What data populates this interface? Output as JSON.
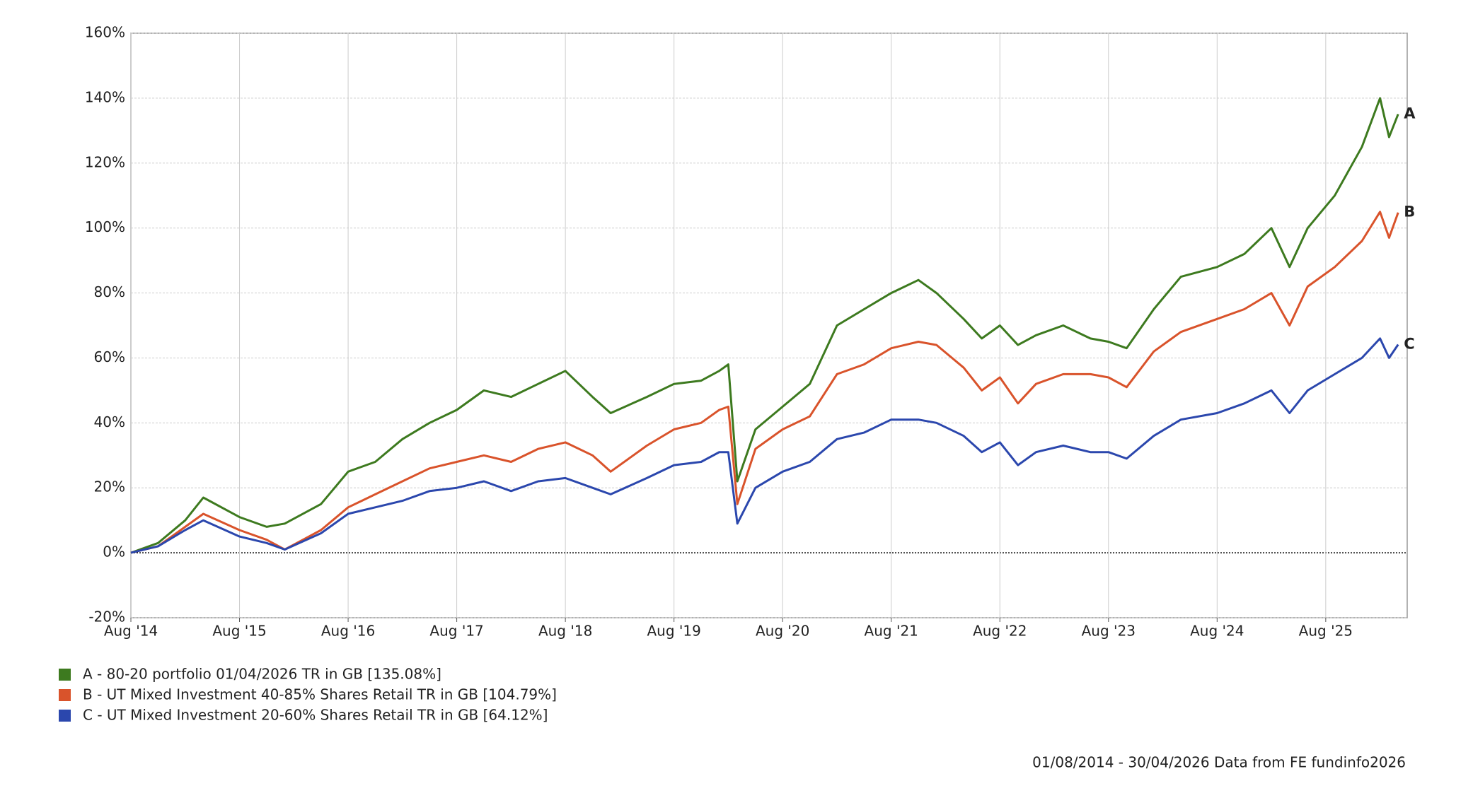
{
  "chart_data": {
    "type": "line",
    "x": [
      "2014-08",
      "2014-11",
      "2015-02",
      "2015-04",
      "2015-08",
      "2015-11",
      "2016-01",
      "2016-05",
      "2016-08",
      "2016-11",
      "2017-02",
      "2017-05",
      "2017-08",
      "2017-11",
      "2018-02",
      "2018-05",
      "2018-08",
      "2018-11",
      "2019-01",
      "2019-05",
      "2019-08",
      "2019-11",
      "2020-01",
      "2020-02",
      "2020-03",
      "2020-05",
      "2020-08",
      "2020-11",
      "2021-02",
      "2021-05",
      "2021-08",
      "2021-11",
      "2022-01",
      "2022-04",
      "2022-06",
      "2022-08",
      "2022-10",
      "2022-12",
      "2023-03",
      "2023-06",
      "2023-08",
      "2023-10",
      "2024-01",
      "2024-04",
      "2024-08",
      "2024-11",
      "2025-02",
      "2025-04",
      "2025-06",
      "2025-09",
      "2025-12",
      "2026-02",
      "2026-03",
      "2026-04"
    ],
    "series": [
      {
        "name": "A - 80-20 portfolio 01/04/2026 TR in GB [135.08%]",
        "label": "A",
        "color": "#3d7a1f",
        "values": [
          0,
          3,
          10,
          17,
          11,
          8,
          9,
          15,
          25,
          28,
          35,
          40,
          44,
          50,
          48,
          52,
          56,
          48,
          43,
          48,
          52,
          53,
          56,
          58,
          22,
          38,
          45,
          52,
          70,
          75,
          80,
          84,
          80,
          72,
          66,
          70,
          64,
          67,
          70,
          66,
          65,
          63,
          75,
          85,
          88,
          92,
          100,
          88,
          100,
          110,
          125,
          140,
          128,
          135.08
        ]
      },
      {
        "name": "B - UT Mixed Investment 40-85% Shares Retail TR in GB [104.79%]",
        "label": "B",
        "color": "#d9532b",
        "values": [
          0,
          2,
          8,
          12,
          7,
          4,
          1,
          7,
          14,
          18,
          22,
          26,
          28,
          30,
          28,
          32,
          34,
          30,
          25,
          33,
          38,
          40,
          44,
          45,
          15,
          32,
          38,
          42,
          55,
          58,
          63,
          65,
          64,
          57,
          50,
          54,
          46,
          52,
          55,
          55,
          54,
          51,
          62,
          68,
          72,
          75,
          80,
          70,
          82,
          88,
          96,
          105,
          97,
          104.79
        ]
      },
      {
        "name": "C - UT Mixed Investment 20-60% Shares Retail TR in GB [64.12%]",
        "label": "C",
        "color": "#2b47ad",
        "values": [
          0,
          2,
          7,
          10,
          5,
          3,
          1,
          6,
          12,
          14,
          16,
          19,
          20,
          22,
          19,
          22,
          23,
          20,
          18,
          23,
          27,
          28,
          31,
          31,
          9,
          20,
          25,
          28,
          35,
          37,
          41,
          41,
          40,
          36,
          31,
          34,
          27,
          31,
          33,
          31,
          31,
          29,
          36,
          41,
          43,
          46,
          50,
          43,
          50,
          55,
          60,
          66,
          60,
          64.12
        ]
      }
    ],
    "xlim": [
      "2014-08",
      "2026-05"
    ],
    "xticks": [
      {
        "value": "2014-08",
        "label": "Aug '14"
      },
      {
        "value": "2015-08",
        "label": "Aug '15"
      },
      {
        "value": "2016-08",
        "label": "Aug '16"
      },
      {
        "value": "2017-08",
        "label": "Aug '17"
      },
      {
        "value": "2018-08",
        "label": "Aug '18"
      },
      {
        "value": "2019-08",
        "label": "Aug '19"
      },
      {
        "value": "2020-08",
        "label": "Aug '20"
      },
      {
        "value": "2021-08",
        "label": "Aug '21"
      },
      {
        "value": "2022-08",
        "label": "Aug '22"
      },
      {
        "value": "2023-08",
        "label": "Aug '23"
      },
      {
        "value": "2024-08",
        "label": "Aug '24"
      },
      {
        "value": "2025-08",
        "label": "Aug '25"
      }
    ],
    "ylim": [
      -20,
      160
    ],
    "yticks": [
      {
        "value": -20,
        "label": "-20%"
      },
      {
        "value": 0,
        "label": "0%"
      },
      {
        "value": 20,
        "label": "20%"
      },
      {
        "value": 40,
        "label": "40%"
      },
      {
        "value": 60,
        "label": "60%"
      },
      {
        "value": 80,
        "label": "80%"
      },
      {
        "value": 100,
        "label": "100%"
      },
      {
        "value": 120,
        "label": "120%"
      },
      {
        "value": 140,
        "label": "140%"
      },
      {
        "value": 160,
        "label": "160%"
      }
    ],
    "grid": true,
    "footnote": "01/08/2014 - 30/04/2026 Data from FE fundinfo2026"
  }
}
